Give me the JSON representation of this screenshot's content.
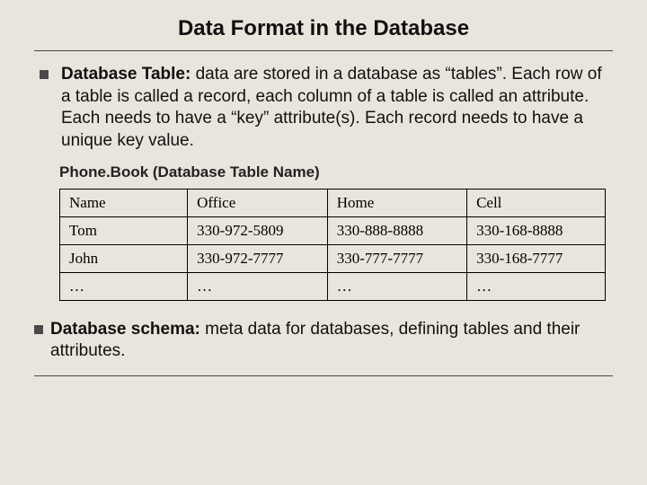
{
  "title": "Data Format in the Database",
  "bullet1": {
    "lead": "Database Table:",
    "text": " data are stored in a database as “tables”. Each row of a table is called a record, each column of a table is called an attribute. Each needs to have a “key” attribute(s). Each record needs to have a unique key value."
  },
  "table": {
    "caption": "Phone.Book (Database Table Name)",
    "columns": [
      "Name",
      "Office",
      "Home",
      "Cell"
    ],
    "column_widths": [
      "140px",
      "156px",
      "156px",
      "156px"
    ],
    "rows": [
      [
        "Tom",
        "330-972-5809",
        "330-888-8888",
        "330-168-8888"
      ],
      [
        "John",
        "330-972-7777",
        "330-777-7777",
        "330-168-7777"
      ],
      [
        "…",
        "…",
        "…",
        "…"
      ]
    ],
    "border_color": "#000000",
    "font_family": "Times New Roman",
    "cell_fontsize": 17
  },
  "bullet2": {
    "lead": "Database schema:",
    "text": " meta data for databases, defining tables and their attributes."
  },
  "colors": {
    "background": "#eae5dc",
    "divider": "#444444",
    "bullet_square": "#4a4a4a",
    "text": "#111111"
  }
}
